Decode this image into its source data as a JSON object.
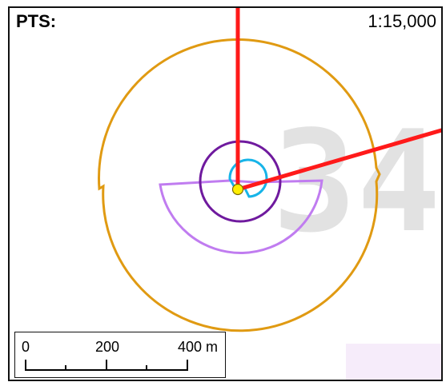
{
  "map": {
    "title": "PTS:",
    "scale_ratio": "1:15,000",
    "background_numeral": "34",
    "colors": {
      "road": "#ff1a1a",
      "outer_ring": "#e09a12",
      "purple_ring": "#6f1a9e",
      "lavender_sector": "#c07cf0",
      "cyan_ring": "#17b4e8",
      "point_fill": "#ffee00",
      "point_stroke": "#7a6a00",
      "watermark": "#dcdcdc"
    }
  },
  "scalebar": {
    "labels": [
      "0",
      "200",
      "400 m"
    ]
  }
}
